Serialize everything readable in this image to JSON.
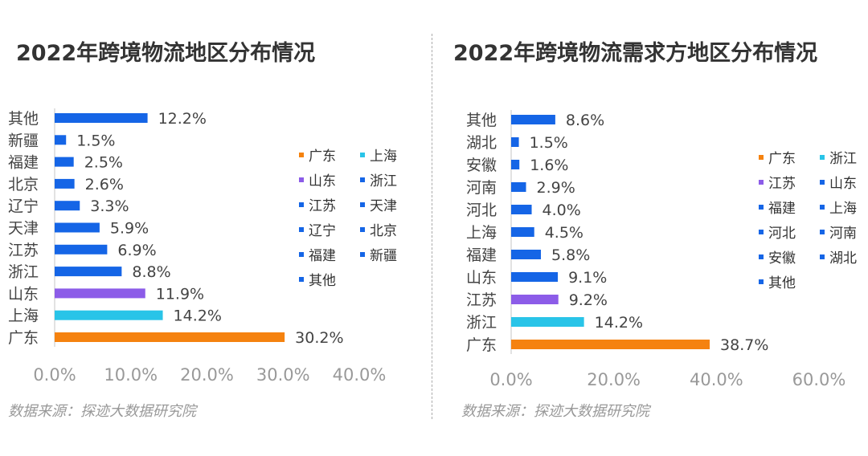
{
  "left": {
    "title": "2022年跨境物流地区分布情况",
    "source": "数据来源：探迹大数据研究院",
    "legend": [
      {
        "label": "广东",
        "color": "#F5820F"
      },
      {
        "label": "上海",
        "color": "#29C4E8"
      },
      {
        "label": "山东",
        "color": "#8C5CE8"
      },
      {
        "label": "浙江",
        "color": "#1565E6"
      },
      {
        "label": "江苏",
        "color": "#1565E6"
      },
      {
        "label": "天津",
        "color": "#1565E6"
      },
      {
        "label": "辽宁",
        "color": "#1565E6"
      },
      {
        "label": "北京",
        "color": "#1565E6"
      },
      {
        "label": "福建",
        "color": "#1565E6"
      },
      {
        "label": "新疆",
        "color": "#1565E6"
      },
      {
        "label": "其他",
        "color": "#1565E6"
      }
    ]
  },
  "right": {
    "title": "2022年跨境物流需求方地区分布情况",
    "source": "数据来源：探迹大数据研究院",
    "legend": [
      {
        "label": "广东",
        "color": "#F5820F"
      },
      {
        "label": "浙江",
        "color": "#29C4E8"
      },
      {
        "label": "江苏",
        "color": "#8C5CE8"
      },
      {
        "label": "山东",
        "color": "#1565E6"
      },
      {
        "label": "福建",
        "color": "#1565E6"
      },
      {
        "label": "上海",
        "color": "#1565E6"
      },
      {
        "label": "河北",
        "color": "#1565E6"
      },
      {
        "label": "河南",
        "color": "#1565E6"
      },
      {
        "label": "安徽",
        "color": "#1565E6"
      },
      {
        "label": "湖北",
        "color": "#1565E6"
      },
      {
        "label": "其他",
        "color": "#1565E6"
      }
    ]
  },
  "chart_data": [
    {
      "type": "bar",
      "orientation": "horizontal",
      "title": "2022年跨境物流地区分布情况",
      "categories": [
        "其他",
        "新疆",
        "福建",
        "北京",
        "辽宁",
        "天津",
        "江苏",
        "浙江",
        "山东",
        "上海",
        "广东"
      ],
      "values": [
        12.2,
        1.5,
        2.5,
        2.6,
        3.3,
        5.9,
        6.9,
        8.8,
        11.9,
        14.2,
        30.2
      ],
      "value_labels": [
        "12.2%",
        "1.5%",
        "2.5%",
        "2.6%",
        "3.3%",
        "5.9%",
        "6.9%",
        "8.8%",
        "11.9%",
        "14.2%",
        "30.2%"
      ],
      "colors": [
        "#1565E6",
        "#1565E6",
        "#1565E6",
        "#1565E6",
        "#1565E6",
        "#1565E6",
        "#1565E6",
        "#1565E6",
        "#8C5CE8",
        "#29C4E8",
        "#F5820F"
      ],
      "xlim": [
        0,
        40
      ],
      "xticks": [
        0,
        10,
        20,
        30,
        40
      ],
      "xtick_labels": [
        "0.0%",
        "10.0%",
        "20.0%",
        "30.0%",
        "40.0%"
      ],
      "grid": false,
      "legend_position": "right"
    },
    {
      "type": "bar",
      "orientation": "horizontal",
      "title": "2022年跨境物流需求方地区分布情况",
      "categories": [
        "其他",
        "湖北",
        "安徽",
        "河南",
        "河北",
        "上海",
        "福建",
        "山东",
        "江苏",
        "浙江",
        "广东"
      ],
      "values": [
        8.6,
        1.5,
        1.6,
        2.9,
        4.0,
        4.5,
        5.8,
        9.1,
        9.2,
        14.2,
        38.7
      ],
      "value_labels": [
        "8.6%",
        "1.5%",
        "1.6%",
        "2.9%",
        "4.0%",
        "4.5%",
        "5.8%",
        "9.1%",
        "9.2%",
        "14.2%",
        "38.7%"
      ],
      "colors": [
        "#1565E6",
        "#1565E6",
        "#1565E6",
        "#1565E6",
        "#1565E6",
        "#1565E6",
        "#1565E6",
        "#1565E6",
        "#8C5CE8",
        "#29C4E8",
        "#F5820F"
      ],
      "xlim": [
        0,
        60
      ],
      "xticks": [
        0,
        20,
        40,
        60
      ],
      "xtick_labels": [
        "0.0%",
        "20.0%",
        "40.0%",
        "60.0%"
      ],
      "grid": false,
      "legend_position": "right"
    }
  ]
}
